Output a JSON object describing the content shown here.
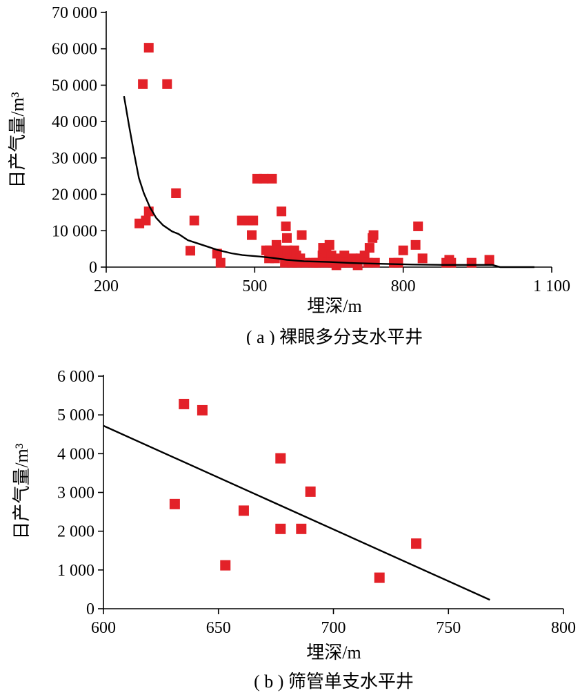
{
  "colors": {
    "marker": "#e32128",
    "fit_line": "#000000",
    "axis": "#000000"
  },
  "chart_data": [
    {
      "type": "scatter",
      "caption": "( a ) 裸眼多分支水平井",
      "xlabel": "埋深/m",
      "ylabel": "日产气量/m³",
      "xlim": [
        200,
        1100
      ],
      "ylim": [
        0,
        70000
      ],
      "x_ticks": [
        200,
        500,
        800,
        1100
      ],
      "x_tick_labels": [
        "200",
        "500",
        "800",
        "1 100"
      ],
      "y_ticks": [
        0,
        10000,
        20000,
        30000,
        40000,
        50000,
        60000,
        70000
      ],
      "y_tick_labels": [
        "0",
        "10 000",
        "20 000",
        "30 000",
        "40 000",
        "50 000",
        "60 000",
        "70 000"
      ],
      "grid": false,
      "points": [
        [
          267,
          12000
        ],
        [
          274,
          50300
        ],
        [
          280,
          12800
        ],
        [
          286,
          60300
        ],
        [
          286,
          15300
        ],
        [
          323,
          50300
        ],
        [
          341,
          20300
        ],
        [
          370,
          4500
        ],
        [
          378,
          12800
        ],
        [
          424,
          3700
        ],
        [
          431,
          1200
        ],
        [
          474,
          12800
        ],
        [
          487,
          12800
        ],
        [
          494,
          8800
        ],
        [
          497,
          12800
        ],
        [
          505,
          24300
        ],
        [
          518,
          24300
        ],
        [
          523,
          4600
        ],
        [
          529,
          2400
        ],
        [
          530,
          4600
        ],
        [
          535,
          24300
        ],
        [
          536,
          3200
        ],
        [
          541,
          2400
        ],
        [
          544,
          6100
        ],
        [
          548,
          4600
        ],
        [
          554,
          15300
        ],
        [
          558,
          3200
        ],
        [
          561,
          1200
        ],
        [
          563,
          11200
        ],
        [
          565,
          8000
        ],
        [
          566,
          4600
        ],
        [
          571,
          2400
        ],
        [
          575,
          1200
        ],
        [
          580,
          4600
        ],
        [
          584,
          3200
        ],
        [
          586,
          1200
        ],
        [
          592,
          2400
        ],
        [
          595,
          8800
        ],
        [
          602,
          1200
        ],
        [
          618,
          1200
        ],
        [
          624,
          1200
        ],
        [
          629,
          1200
        ],
        [
          637,
          3200
        ],
        [
          638,
          5300
        ],
        [
          642,
          2400
        ],
        [
          645,
          4000
        ],
        [
          648,
          1200
        ],
        [
          651,
          6100
        ],
        [
          655,
          3200
        ],
        [
          658,
          1200
        ],
        [
          662,
          1200
        ],
        [
          665,
          500
        ],
        [
          672,
          2400
        ],
        [
          675,
          1200
        ],
        [
          681,
          3200
        ],
        [
          684,
          1200
        ],
        [
          691,
          1200
        ],
        [
          698,
          2400
        ],
        [
          705,
          1200
        ],
        [
          708,
          500
        ],
        [
          714,
          2400
        ],
        [
          722,
          3200
        ],
        [
          729,
          1200
        ],
        [
          732,
          5300
        ],
        [
          738,
          8000
        ],
        [
          740,
          8800
        ],
        [
          743,
          1200
        ],
        [
          781,
          1200
        ],
        [
          790,
          1200
        ],
        [
          800,
          4600
        ],
        [
          825,
          6100
        ],
        [
          830,
          11200
        ],
        [
          839,
          2400
        ],
        [
          887,
          1200
        ],
        [
          893,
          2000
        ],
        [
          897,
          1200
        ],
        [
          938,
          1200
        ],
        [
          974,
          2000
        ]
      ],
      "fit_line": [
        [
          236,
          47000
        ],
        [
          246,
          39000
        ],
        [
          256,
          31500
        ],
        [
          266,
          24500
        ],
        [
          276,
          20300
        ],
        [
          288,
          16500
        ],
        [
          301,
          13500
        ],
        [
          315,
          11500
        ],
        [
          333,
          9800
        ],
        [
          346,
          9100
        ],
        [
          365,
          7400
        ],
        [
          394,
          6100
        ],
        [
          425,
          4700
        ],
        [
          453,
          3800
        ],
        [
          475,
          3300
        ],
        [
          510,
          2900
        ],
        [
          538,
          2500
        ],
        [
          565,
          2000
        ],
        [
          600,
          1600
        ],
        [
          650,
          1400
        ],
        [
          700,
          1100
        ],
        [
          760,
          900
        ],
        [
          820,
          700
        ],
        [
          880,
          600
        ],
        [
          980,
          600
        ],
        [
          996,
          0
        ],
        [
          1065,
          0
        ]
      ]
    },
    {
      "type": "scatter",
      "caption": "( b ) 筛管单支水平井",
      "xlabel": "埋深/m",
      "ylabel": "日产气量/m³",
      "xlim": [
        600,
        800
      ],
      "ylim": [
        0,
        6000
      ],
      "x_ticks": [
        600,
        650,
        700,
        750,
        800
      ],
      "x_tick_labels": [
        "600",
        "650",
        "700",
        "750",
        "800"
      ],
      "y_ticks": [
        0,
        1000,
        2000,
        3000,
        4000,
        5000,
        6000
      ],
      "y_tick_labels": [
        "0",
        "1 000",
        "2 000",
        "3 000",
        "4 000",
        "5 000",
        "6 000"
      ],
      "grid": false,
      "points": [
        [
          631,
          2700
        ],
        [
          635,
          5280
        ],
        [
          643,
          5120
        ],
        [
          653,
          1120
        ],
        [
          661,
          2530
        ],
        [
          677,
          2060
        ],
        [
          677,
          3880
        ],
        [
          686,
          2060
        ],
        [
          690,
          3020
        ],
        [
          720,
          800
        ],
        [
          736,
          1680
        ]
      ],
      "fit_line": [
        [
          600,
          4720
        ],
        [
          768,
          230
        ]
      ]
    }
  ]
}
